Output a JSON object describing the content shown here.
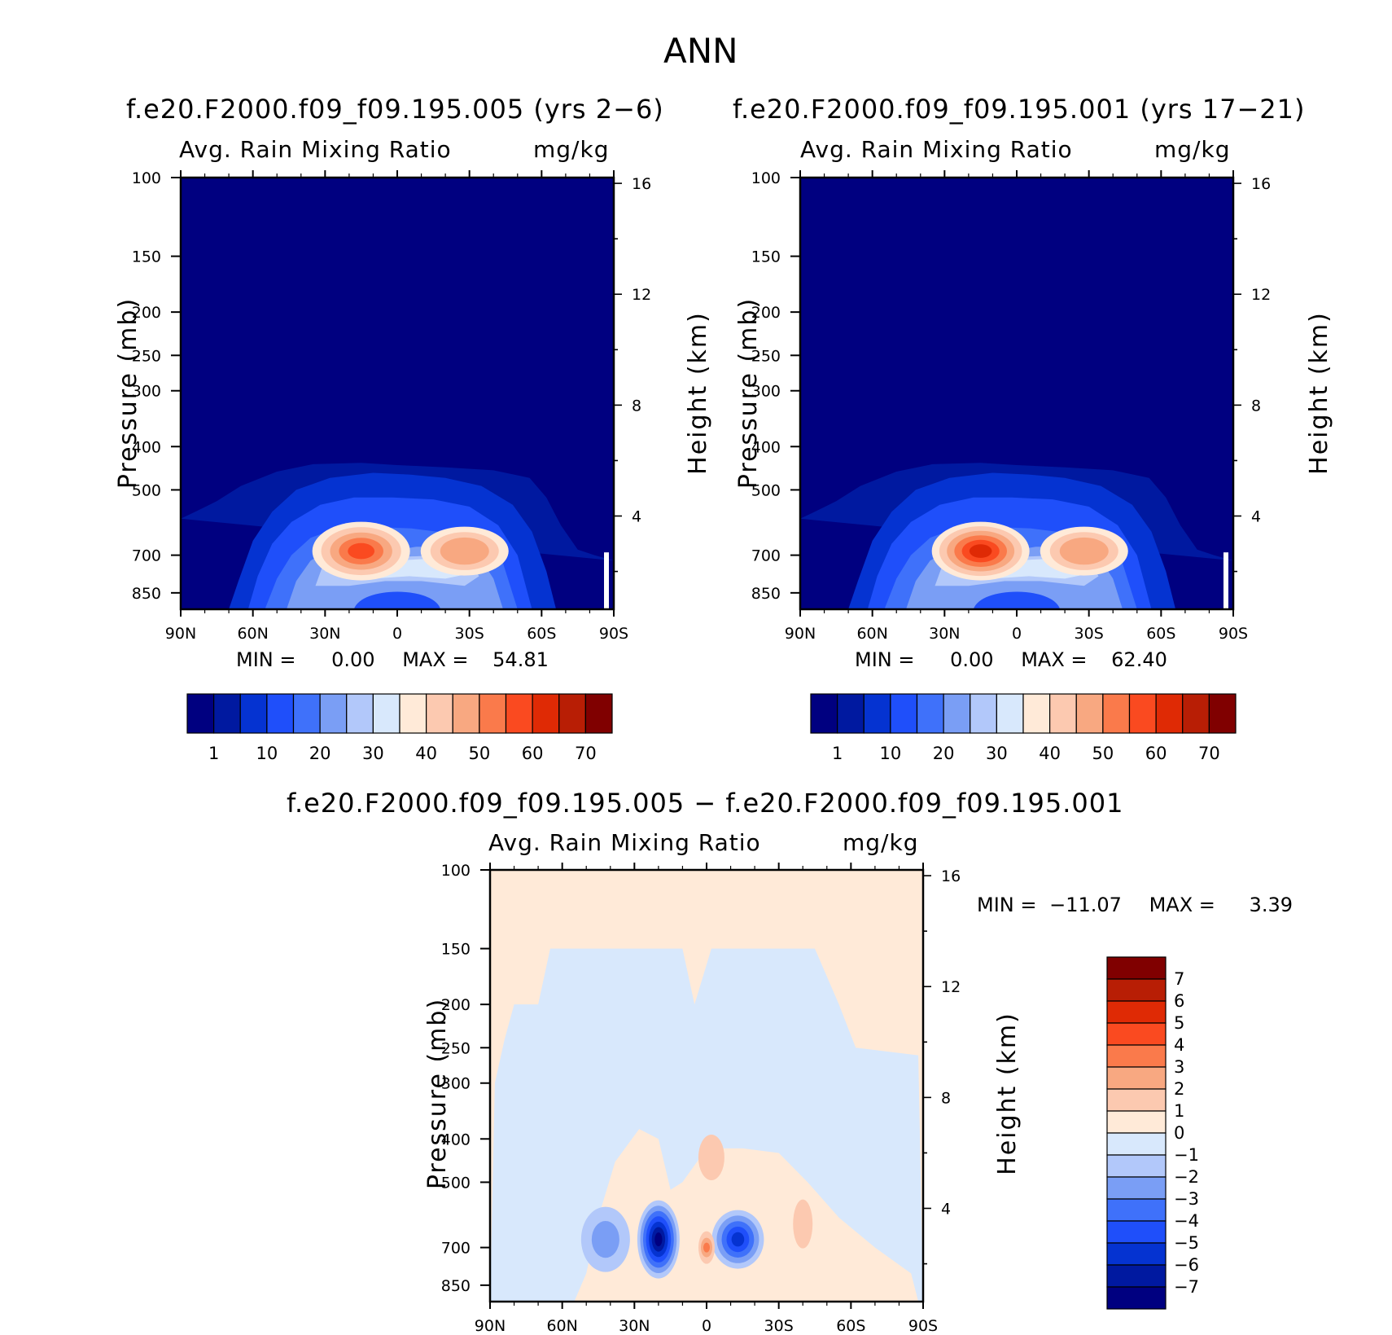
{
  "main_title": "ANN",
  "colors": {
    "seq_scale": [
      "#000080",
      "#0019a0",
      "#0533d1",
      "#1f4ffa",
      "#3f71fa",
      "#7a9ef5",
      "#b2c8fa",
      "#d8e8fc",
      "#ffead8",
      "#fcc9b0",
      "#f8a881",
      "#fa7a4b",
      "#fa4a20",
      "#df2a05",
      "#b81e05",
      "#800000"
    ],
    "diff_scale": [
      "#000080",
      "#0019a0",
      "#0533d1",
      "#1f4ffa",
      "#3f71fa",
      "#7a9ef5",
      "#b2c8fa",
      "#d8e8fc",
      "#ffead8",
      "#fcc9b0",
      "#f8a881",
      "#fa7a4b",
      "#fa4a20",
      "#df2a05",
      "#b81e05",
      "#800000"
    ]
  },
  "chart_data": [
    {
      "type": "contour",
      "id": "panel1",
      "title": "f.e20.F2000.f09_f09.195.005 (yrs 2−6)",
      "variable": "Avg. Rain Mixing Ratio",
      "units": "mg/kg",
      "xlabel": "",
      "ylabel": "Pressure (mb)",
      "y2label": "Height (km)",
      "x_ticks": [
        "90N",
        "60N",
        "30N",
        "0",
        "30S",
        "60S",
        "90S"
      ],
      "y_ticks": [
        "100",
        "150",
        "200",
        "250",
        "300",
        "400",
        "500",
        "700",
        "850"
      ],
      "y2_ticks": [
        "16",
        "12",
        "8",
        "4"
      ],
      "min_label": "MIN =",
      "min_value": "0.00",
      "max_label": "MAX =",
      "max_value": "54.81",
      "colorbar_levels": [
        "1",
        "10",
        "20",
        "30",
        "40",
        "50",
        "60",
        "70"
      ],
      "peaks": [
        {
          "lat": 15,
          "p": 700,
          "value": 54.81
        },
        {
          "lat": -28,
          "p": 700,
          "value": 45
        }
      ]
    },
    {
      "type": "contour",
      "id": "panel2",
      "title": "f.e20.F2000.f09_f09.195.001 (yrs 17−21)",
      "variable": "Avg. Rain Mixing Ratio",
      "units": "mg/kg",
      "xlabel": "",
      "ylabel": "Pressure (mb)",
      "y2label": "Height (km)",
      "x_ticks": [
        "90N",
        "60N",
        "30N",
        "0",
        "30S",
        "60S",
        "90S"
      ],
      "y_ticks": [
        "100",
        "150",
        "200",
        "250",
        "300",
        "400",
        "500",
        "700",
        "850"
      ],
      "y2_ticks": [
        "16",
        "12",
        "8",
        "4"
      ],
      "min_label": "MIN =",
      "min_value": "0.00",
      "max_label": "MAX =",
      "max_value": "62.40",
      "colorbar_levels": [
        "1",
        "10",
        "20",
        "30",
        "40",
        "50",
        "60",
        "70"
      ],
      "peaks": [
        {
          "lat": 15,
          "p": 700,
          "value": 62.4
        },
        {
          "lat": -28,
          "p": 700,
          "value": 46
        }
      ]
    },
    {
      "type": "contour",
      "id": "diff",
      "title": "f.e20.F2000.f09_f09.195.005 − f.e20.F2000.f09_f09.195.001",
      "variable": "Avg. Rain Mixing Ratio",
      "units": "mg/kg",
      "xlabel": "",
      "ylabel": "Pressure (mb)",
      "y2label": "Height (km)",
      "x_ticks": [
        "90N",
        "60N",
        "30N",
        "0",
        "30S",
        "60S",
        "90S"
      ],
      "y_ticks": [
        "100",
        "150",
        "200",
        "250",
        "300",
        "400",
        "500",
        "700",
        "850"
      ],
      "y2_ticks": [
        "16",
        "12",
        "8",
        "4"
      ],
      "min_label": "MIN =",
      "min_value": "−11.07",
      "max_label": "MAX =",
      "max_value": "3.39",
      "colorbar_levels": [
        "7",
        "6",
        "5",
        "4",
        "3",
        "2",
        "1",
        "0",
        "−1",
        "−2",
        "−3",
        "−4",
        "−5",
        "−6",
        "−7"
      ],
      "peaks": [
        {
          "lat": 20,
          "p": 700,
          "value": -11.07
        },
        {
          "lat": 0,
          "p": 700,
          "value": 3.39
        }
      ]
    }
  ]
}
